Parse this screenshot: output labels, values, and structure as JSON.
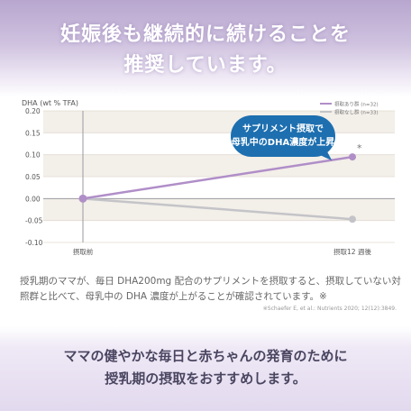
{
  "headline": {
    "line1": "妊娠後も継続的に続けることを",
    "line2": "推奨しています。"
  },
  "callout": {
    "line1": "サプリメント摂取で",
    "line2": "母乳中のDHA濃度が上昇"
  },
  "caption": {
    "line1": "授乳期のママが、毎日 DHA200mg 配合のサプリメントを摂取すると、摂取していない対",
    "line2": "照群と比べて、母乳中の DHA 濃度が上がることが確認されています。※",
    "citation": "※Schaefer E, et al.: Nutrients 2020; 12(12):3849."
  },
  "bottom": {
    "line1": "ママの健やかな毎日と赤ちゃんの発育のために",
    "line2": "授乳期の摂取をおすすめします。"
  },
  "chart_data": {
    "type": "line",
    "ylabel": "DHA (wt % TFA)",
    "xlabel": "",
    "categories": [
      "摂取前",
      "摂取12 週後"
    ],
    "ylim": [
      -0.1,
      0.2
    ],
    "yticks": [
      "0.20",
      "0.15",
      "0.10",
      "0.05",
      "0.00",
      "-0.05",
      "-0.10"
    ],
    "grid": true,
    "legend_position": "top-right",
    "significance_marker": "*",
    "series": [
      {
        "name": "摂取あり群 (n=32)",
        "values": [
          0.0,
          0.095
        ],
        "color": "#b08ec8"
      },
      {
        "name": "摂取なし群 (n=33)",
        "values": [
          0.0,
          -0.047
        ],
        "color": "#c4c4c8"
      }
    ]
  }
}
